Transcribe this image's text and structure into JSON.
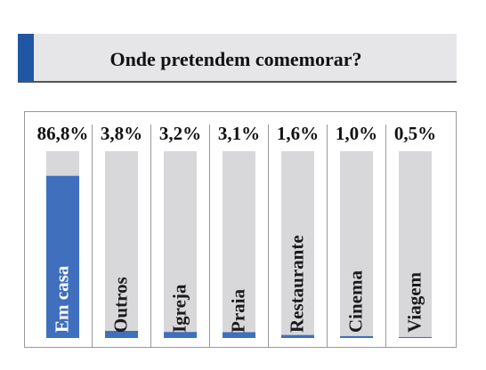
{
  "chart_data": {
    "type": "bar",
    "title": "Onde pretendem comemorar?",
    "categories": [
      "Em casa",
      "Outros",
      "Igreja",
      "Praia",
      "Restaurante",
      "Cinema",
      "Viagem"
    ],
    "values": [
      86.8,
      3.8,
      3.2,
      3.1,
      1.6,
      1.0,
      0.5
    ],
    "value_labels": [
      "86,8%",
      "3,8%",
      "3,2%",
      "3,1%",
      "1,6%",
      "1,0%",
      "0,5%"
    ],
    "color": "#3f6fbd",
    "ylim": [
      0,
      100
    ]
  }
}
